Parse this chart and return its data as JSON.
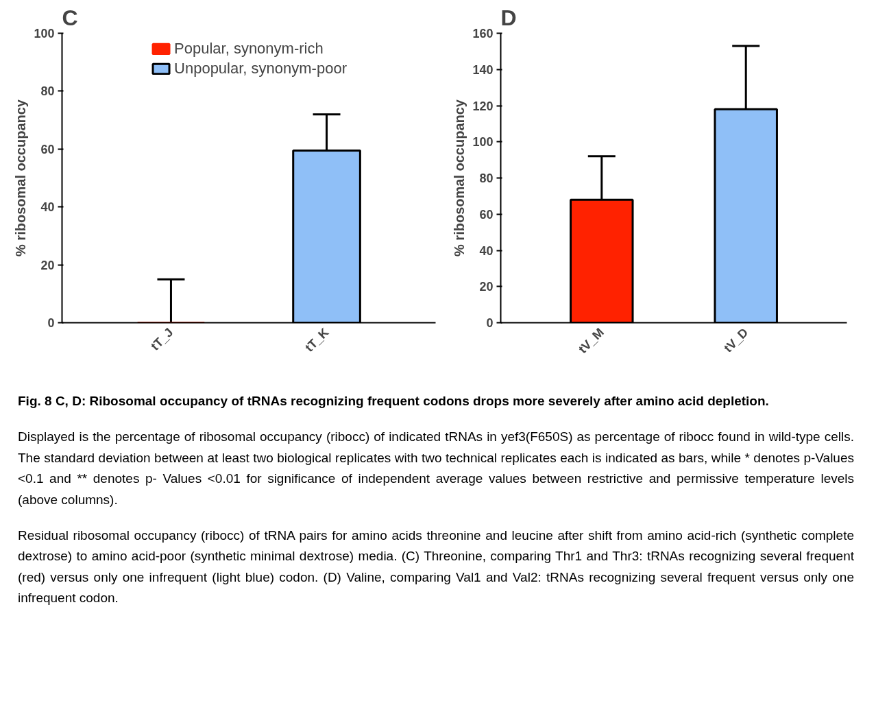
{
  "chart_data": [
    {
      "type": "bar",
      "title": "C",
      "categories": [
        "tT_J",
        "tT_K"
      ],
      "ylabel": "% ribosomal occupancy",
      "ylim": [
        0,
        100
      ],
      "yticks": [
        0,
        20,
        40,
        60,
        80,
        100
      ],
      "legend": "top",
      "grid": false,
      "series": [
        {
          "name": "Popular, synonym-rich",
          "color": "#ff2200",
          "values": [
            0,
            null
          ],
          "errors": [
            [
              0,
              15
            ],
            null
          ]
        },
        {
          "name": "Unpopular, synonym-poor",
          "color": "#8fbff7",
          "values": [
            null,
            59.5
          ],
          "errors": [
            null,
            [
              59.5,
              72
            ]
          ]
        }
      ]
    },
    {
      "type": "bar",
      "title": "D",
      "categories": [
        "tV_M",
        "tV_D"
      ],
      "ylabel": "% ribosomal occupancy",
      "ylim": [
        0,
        160
      ],
      "yticks": [
        0,
        20,
        40,
        60,
        80,
        100,
        120,
        140,
        160
      ],
      "grid": false,
      "series": [
        {
          "color": "#ff2200",
          "values": [
            68,
            null
          ],
          "errors": [
            [
              68,
              92
            ],
            null
          ]
        },
        {
          "color": "#8fbff7",
          "values": [
            null,
            118
          ],
          "errors": [
            null,
            [
              118,
              153
            ]
          ]
        }
      ]
    },
    {
      "type": "other",
      "title": "Fig. 8 C, D: Ribosomal occupancy of tRNAs recognizing frequent codons drops more severely after amino acid depletion.",
      "annotations": [
        "Displayed is the percentage of ribosomal occupancy (ribocc) of indicated tRNAs in yef3(F650S) as percentage of ribocc found in wild-type cells. The standard deviation between at least two biological replicates with two technical replicates each is indicated as bars, while * denotes p-Values <0.1 and ** denotes p- Values <0.01 for significance of independent average values between restrictive and permissive temperature levels (above columns).",
        "Residual ribosomal occupancy (ribocc) of tRNA pairs for amino acids threonine and leucine after shift from amino acid-rich (synthetic complete dextrose) to amino acid-poor (synthetic minimal dextrose) media. (C) Threonine, comparing Thr1 and Thr3: tRNAs recognizing several frequent (red) versus only one infrequent (light blue) codon. (D) Valine, comparing Val1 and Val2: tRNAs recognizing several frequent versus only one infrequent codon."
      ]
    }
  ]
}
